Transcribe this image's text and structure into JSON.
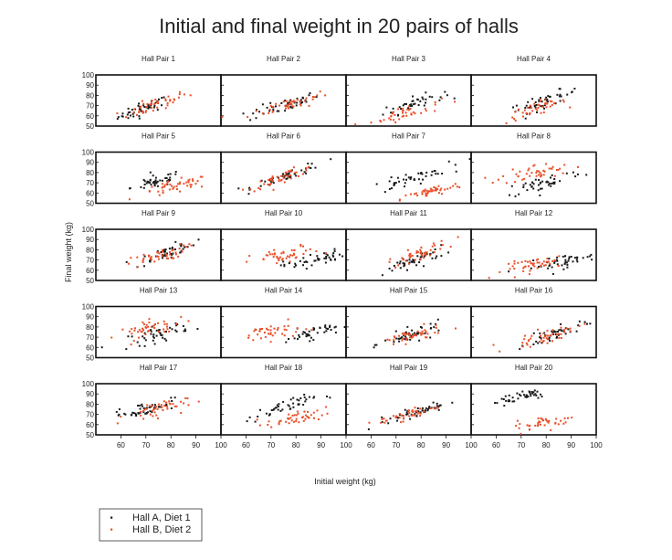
{
  "chart_data": {
    "type": "scatter",
    "title": "Initial and final weight in 20 pairs of halls",
    "xlabel": "Initial weight (kg)",
    "ylabel": "Final weight (kg)",
    "xlim": [
      50,
      100
    ],
    "ylim": [
      50,
      100
    ],
    "xticks": [
      60,
      70,
      80,
      90,
      100
    ],
    "yticks": [
      50,
      60,
      70,
      80,
      90,
      100
    ],
    "layout": {
      "rows": 5,
      "cols": 4
    },
    "legend": {
      "position": "bottom-left"
    },
    "series": [
      {
        "name": "Hall A, Diet 1",
        "color": "#1a1a1a",
        "marker": "dot"
      },
      {
        "name": "Hall B, Diet 2",
        "color": "#e8502a",
        "marker": "dot"
      }
    ],
    "panels": [
      {
        "title": "Hall Pair 1",
        "groups": [
          {
            "cx": 69,
            "cy": 67,
            "sx": 5,
            "slope": 0.8,
            "noise": 4,
            "n": 45
          },
          {
            "cx": 73,
            "cy": 70,
            "sx": 7,
            "slope": 0.8,
            "noise": 4,
            "n": 45
          }
        ]
      },
      {
        "title": "Hall Pair 2",
        "groups": [
          {
            "cx": 75,
            "cy": 70,
            "sx": 7,
            "slope": 0.7,
            "noise": 4,
            "n": 45
          },
          {
            "cx": 78,
            "cy": 72,
            "sx": 8,
            "slope": 0.6,
            "noise": 4,
            "n": 45
          }
        ]
      },
      {
        "title": "Hall Pair 3",
        "groups": [
          {
            "cx": 77,
            "cy": 72,
            "sx": 6,
            "slope": 0.7,
            "noise": 4,
            "n": 40
          },
          {
            "cx": 74,
            "cy": 63,
            "sx": 7,
            "slope": 0.6,
            "noise": 4,
            "n": 40
          }
        ]
      },
      {
        "title": "Hall Pair 4",
        "groups": [
          {
            "cx": 79,
            "cy": 74,
            "sx": 7,
            "slope": 0.8,
            "noise": 4,
            "n": 45
          },
          {
            "cx": 76,
            "cy": 67,
            "sx": 6,
            "slope": 0.7,
            "noise": 4,
            "n": 45
          }
        ]
      },
      {
        "title": "Hall Pair 5",
        "groups": [
          {
            "cx": 74,
            "cy": 71,
            "sx": 5,
            "slope": 0.6,
            "noise": 4,
            "n": 45
          },
          {
            "cx": 82,
            "cy": 66,
            "sx": 7,
            "slope": 0.5,
            "noise": 4,
            "n": 45
          }
        ]
      },
      {
        "title": "Hall Pair 6",
        "groups": [
          {
            "cx": 77,
            "cy": 78,
            "sx": 7,
            "slope": 0.8,
            "noise": 3,
            "n": 45
          },
          {
            "cx": 75,
            "cy": 76,
            "sx": 7,
            "slope": 0.8,
            "noise": 3,
            "n": 45
          }
        ]
      },
      {
        "title": "Hall Pair 7",
        "groups": [
          {
            "cx": 75,
            "cy": 73,
            "sx": 8,
            "slope": 0.7,
            "noise": 4,
            "n": 45
          },
          {
            "cx": 84,
            "cy": 61,
            "sx": 6,
            "slope": 0.6,
            "noise": 3,
            "n": 45
          }
        ]
      },
      {
        "title": "Hall Pair 8",
        "groups": [
          {
            "cx": 79,
            "cy": 70,
            "sx": 8,
            "slope": 0.6,
            "noise": 5,
            "n": 45
          },
          {
            "cx": 76,
            "cy": 80,
            "sx": 7,
            "slope": 0.3,
            "noise": 5,
            "n": 45
          }
        ]
      },
      {
        "title": "Hall Pair 9",
        "groups": [
          {
            "cx": 78,
            "cy": 77,
            "sx": 6,
            "slope": 0.8,
            "noise": 4,
            "n": 45
          },
          {
            "cx": 74,
            "cy": 73,
            "sx": 6,
            "slope": 0.7,
            "noise": 4,
            "n": 45
          }
        ]
      },
      {
        "title": "Hall Pair 10",
        "groups": [
          {
            "cx": 87,
            "cy": 70,
            "sx": 6,
            "slope": 0.5,
            "noise": 4,
            "n": 45
          },
          {
            "cx": 76,
            "cy": 74,
            "sx": 7,
            "slope": 0.4,
            "noise": 5,
            "n": 45
          }
        ]
      },
      {
        "title": "Hall Pair 11",
        "groups": [
          {
            "cx": 78,
            "cy": 70,
            "sx": 6,
            "slope": 0.8,
            "noise": 4,
            "n": 45
          },
          {
            "cx": 79,
            "cy": 76,
            "sx": 6,
            "slope": 0.8,
            "noise": 4,
            "n": 45
          }
        ]
      },
      {
        "title": "Hall Pair 12",
        "groups": [
          {
            "cx": 86,
            "cy": 68,
            "sx": 7,
            "slope": 0.5,
            "noise": 4,
            "n": 45
          },
          {
            "cx": 77,
            "cy": 66,
            "sx": 7,
            "slope": 0.4,
            "noise": 4,
            "n": 45
          }
        ]
      },
      {
        "title": "Hall Pair 13",
        "groups": [
          {
            "cx": 75,
            "cy": 73,
            "sx": 6,
            "slope": 0.6,
            "noise": 5,
            "n": 45
          },
          {
            "cx": 73,
            "cy": 79,
            "sx": 7,
            "slope": 0.5,
            "noise": 5,
            "n": 45
          }
        ]
      },
      {
        "title": "Hall Pair 14",
        "groups": [
          {
            "cx": 86,
            "cy": 74,
            "sx": 5,
            "slope": 0.5,
            "noise": 4,
            "n": 40
          },
          {
            "cx": 70,
            "cy": 75,
            "sx": 6,
            "slope": 0.3,
            "noise": 5,
            "n": 40
          }
        ]
      },
      {
        "title": "Hall Pair 15",
        "groups": [
          {
            "cx": 77,
            "cy": 73,
            "sx": 6,
            "slope": 0.7,
            "noise": 4,
            "n": 45
          },
          {
            "cx": 76,
            "cy": 71,
            "sx": 6,
            "slope": 0.5,
            "noise": 4,
            "n": 45
          }
        ]
      },
      {
        "title": "Hall Pair 16",
        "groups": [
          {
            "cx": 84,
            "cy": 73,
            "sx": 6,
            "slope": 0.8,
            "noise": 4,
            "n": 45
          },
          {
            "cx": 80,
            "cy": 71,
            "sx": 7,
            "slope": 0.6,
            "noise": 4,
            "n": 45
          }
        ]
      },
      {
        "title": "Hall Pair 17",
        "groups": [
          {
            "cx": 69,
            "cy": 75,
            "sx": 6,
            "slope": 0.6,
            "noise": 4,
            "n": 45
          },
          {
            "cx": 74,
            "cy": 75,
            "sx": 6,
            "slope": 0.5,
            "noise": 5,
            "n": 45
          }
        ]
      },
      {
        "title": "Hall Pair 18",
        "groups": [
          {
            "cx": 74,
            "cy": 76,
            "sx": 7,
            "slope": 0.7,
            "noise": 4,
            "n": 45
          },
          {
            "cx": 80,
            "cy": 66,
            "sx": 6,
            "slope": 0.4,
            "noise": 4,
            "n": 45
          }
        ]
      },
      {
        "title": "Hall Pair 19",
        "groups": [
          {
            "cx": 79,
            "cy": 73,
            "sx": 6,
            "slope": 0.7,
            "noise": 3,
            "n": 45
          },
          {
            "cx": 75,
            "cy": 70,
            "sx": 6,
            "slope": 0.6,
            "noise": 3,
            "n": 45
          }
        ]
      },
      {
        "title": "Hall Pair 20",
        "groups": [
          {
            "cx": 70,
            "cy": 88,
            "sx": 6,
            "slope": 0.6,
            "noise": 4,
            "n": 40
          },
          {
            "cx": 80,
            "cy": 62,
            "sx": 6,
            "slope": 0.4,
            "noise": 4,
            "n": 40
          }
        ]
      }
    ]
  }
}
